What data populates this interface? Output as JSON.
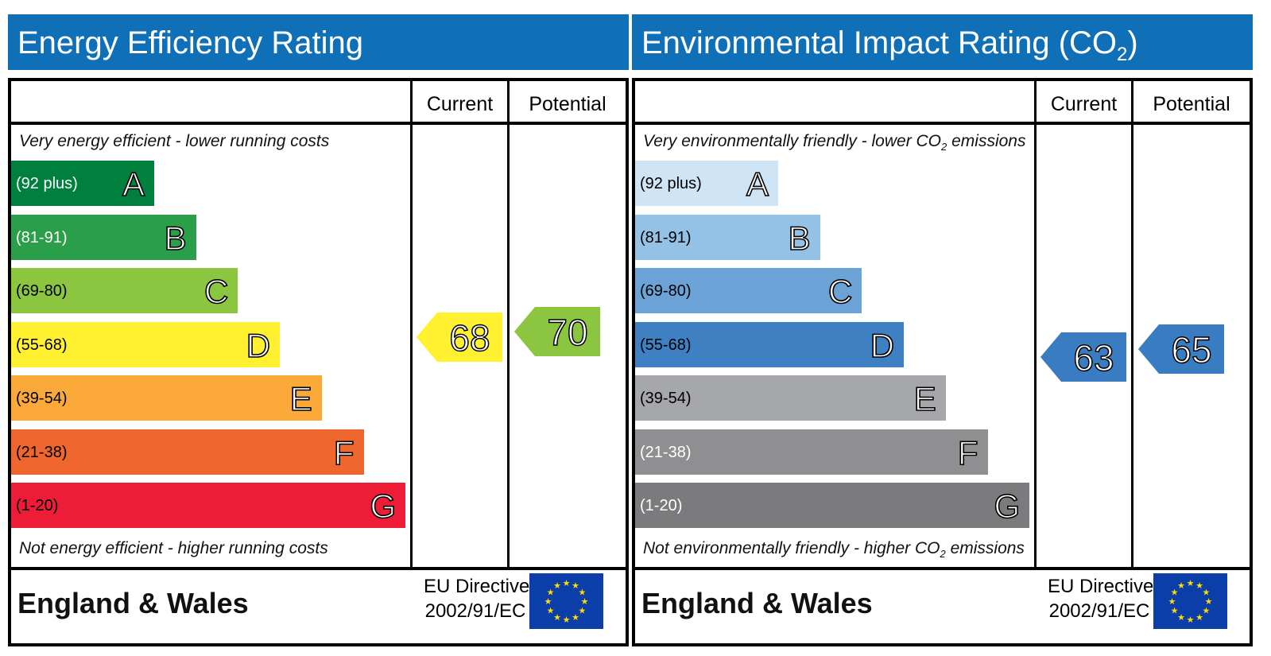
{
  "chart_data": [
    {
      "type": "bar",
      "title": "Energy Efficiency Rating",
      "columns": [
        "Current",
        "Potential"
      ],
      "top_note": "Very energy efficient - lower running costs",
      "bottom_note": "Not energy efficient - higher running costs",
      "categories": [
        "A",
        "B",
        "C",
        "D",
        "E",
        "F",
        "G"
      ],
      "ranges": [
        "(92 plus)",
        "(81-91)",
        "(69-80)",
        "(55-68)",
        "(39-54)",
        "(21-38)",
        "(1-20)"
      ],
      "colors": [
        "#007f3d",
        "#2a9e48",
        "#8cc641",
        "#fff12f",
        "#fbaa3a",
        "#f0662f",
        "#ee1d37"
      ],
      "range_text_colors": [
        "#ffffff",
        "#ffffff",
        "#000000",
        "#000000",
        "#000000",
        "#000000",
        "#000000"
      ],
      "current": 68,
      "potential": 70,
      "current_color": "#fff12f",
      "potential_color": "#8cc641",
      "footer": "England & Wales",
      "directive": [
        "EU Directive",
        "2002/91/EC"
      ]
    },
    {
      "type": "bar",
      "title_parts": [
        "Environmental Impact Rating (CO",
        "2",
        ")"
      ],
      "columns": [
        "Current",
        "Potential"
      ],
      "top_note_parts": [
        "Very environmentally friendly - lower CO",
        "2",
        " emissions"
      ],
      "bottom_note_parts": [
        "Not environmentally friendly - higher CO",
        "2",
        " emissions"
      ],
      "categories": [
        "A",
        "B",
        "C",
        "D",
        "E",
        "F",
        "G"
      ],
      "ranges": [
        "(92 plus)",
        "(81-91)",
        "(69-80)",
        "(55-68)",
        "(39-54)",
        "(21-38)",
        "(1-20)"
      ],
      "colors": [
        "#cfe5f5",
        "#94c2e6",
        "#6ca3d6",
        "#3f80c3",
        "#a6a7aa",
        "#8f8f92",
        "#7b7b7e"
      ],
      "range_text_colors": [
        "#000000",
        "#000000",
        "#000000",
        "#000000",
        "#000000",
        "#ffffff",
        "#ffffff"
      ],
      "current": 63,
      "potential": 65,
      "current_color": "#3a7cc1",
      "potential_color": "#3a7cc1",
      "footer": "England & Wales",
      "directive": [
        "EU Directive",
        "2002/91/EC"
      ]
    }
  ]
}
